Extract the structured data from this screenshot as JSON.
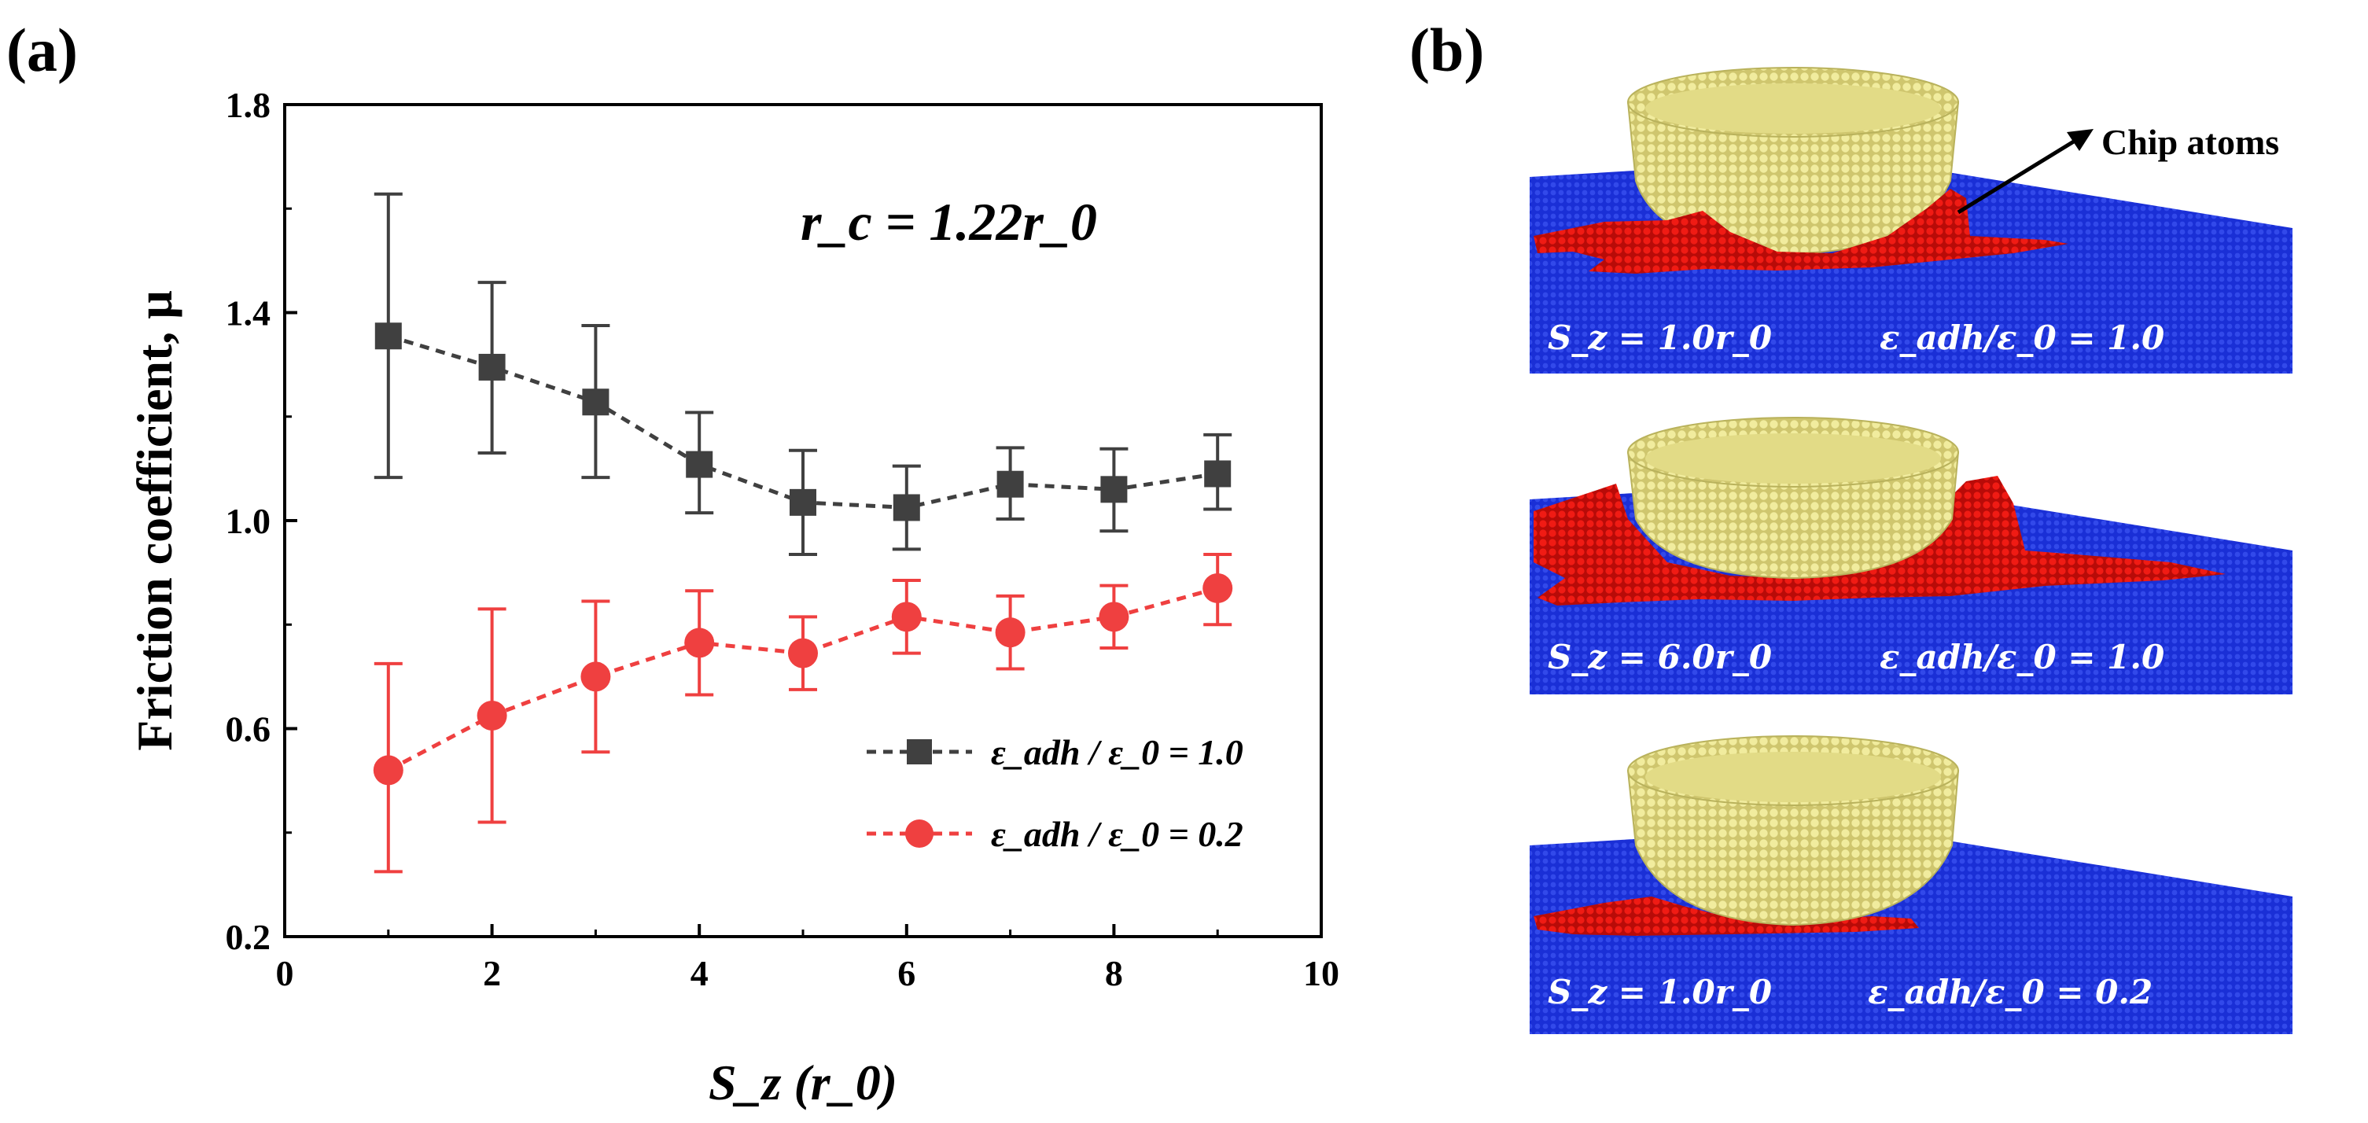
{
  "labels": {
    "panel_a": "(a)",
    "panel_b": "(b)",
    "annotation": "r_c = 1.22r_0",
    "chip_atoms": "Chip atoms"
  },
  "chart_data": {
    "type": "line",
    "title": "",
    "xlabel": "S_z (r_0)",
    "ylabel": "Friction coefficient, μ",
    "xlim": [
      0,
      10
    ],
    "ylim": [
      0.2,
      1.8
    ],
    "xticks": [
      0,
      2,
      4,
      6,
      8,
      10
    ],
    "yticks": [
      0.2,
      0.6,
      1.0,
      1.4,
      1.8
    ],
    "ytick_labels": [
      "0.2",
      "0.6",
      "1.0",
      "1.4",
      "1.8"
    ],
    "x": [
      1,
      2,
      3,
      4,
      5,
      6,
      7,
      8,
      9
    ],
    "series": [
      {
        "name": "ε_adh / ε_0 = 1.0",
        "color": "#404040",
        "marker": "square",
        "values": [
          1.355,
          1.295,
          1.228,
          1.108,
          1.035,
          1.025,
          1.07,
          1.06,
          1.09
        ],
        "err_upper": [
          1.628,
          1.458,
          1.375,
          1.208,
          1.135,
          1.105,
          1.14,
          1.138,
          1.165
        ],
        "err_lower": [
          1.083,
          1.13,
          1.083,
          1.015,
          0.935,
          0.945,
          1.003,
          0.98,
          1.022
        ]
      },
      {
        "name": "ε_adh / ε_0 = 0.2",
        "color": "#ef4040",
        "marker": "circle",
        "values": [
          0.52,
          0.625,
          0.7,
          0.765,
          0.745,
          0.815,
          0.785,
          0.815,
          0.87
        ],
        "err_upper": [
          0.725,
          0.83,
          0.845,
          0.865,
          0.815,
          0.885,
          0.855,
          0.875,
          0.935
        ],
        "err_lower": [
          0.325,
          0.42,
          0.555,
          0.665,
          0.675,
          0.745,
          0.715,
          0.755,
          0.8
        ]
      }
    ],
    "legend": [
      "ε_adh / ε_0 = 1.0",
      "ε_adh / ε_0 = 0.2"
    ],
    "legend_location": "lower-right"
  },
  "simulation_panels": [
    {
      "sz_label": "S_z = 1.0r_0",
      "eps_label": "ε_adh/ε_0 = 1.0"
    },
    {
      "sz_label": "S_z = 6.0r_0",
      "eps_label": "ε_adh/ε_0 = 1.0"
    },
    {
      "sz_label": "S_z = 1.0r_0",
      "eps_label": "ε_adh/ε_0 = 0.2"
    }
  ],
  "colors": {
    "substrate": "#1a2fd6",
    "chip": "#e8140f",
    "tip": "#e6e08c"
  }
}
